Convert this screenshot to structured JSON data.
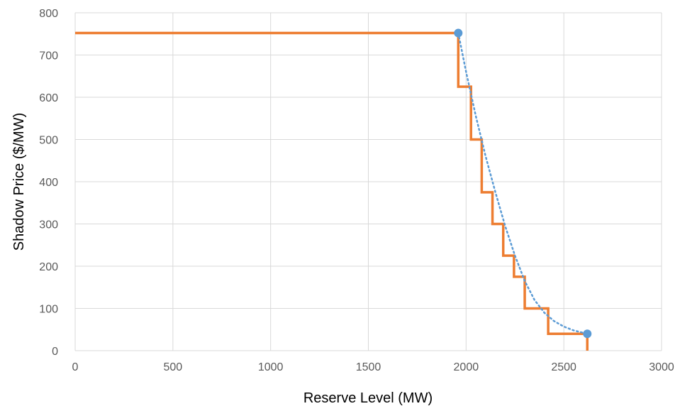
{
  "chart_data": {
    "type": "line",
    "title": "",
    "xlabel": "Reserve Level  (MW)",
    "ylabel": "Shadow Price ($/MW)",
    "xlim": [
      0,
      3000
    ],
    "ylim": [
      0,
      800
    ],
    "xticks": [
      0,
      500,
      1000,
      1500,
      2000,
      2500,
      3000
    ],
    "yticks": [
      0,
      100,
      200,
      300,
      400,
      500,
      600,
      700,
      800
    ],
    "grid": true,
    "legend": "none",
    "series": [
      {
        "kind": "step",
        "color": "#ed7d31",
        "points": [
          [
            0,
            752
          ],
          [
            1960,
            752
          ],
          [
            1960,
            625
          ],
          [
            2025,
            625
          ],
          [
            2025,
            500
          ],
          [
            2080,
            500
          ],
          [
            2080,
            375
          ],
          [
            2135,
            375
          ],
          [
            2135,
            300
          ],
          [
            2190,
            300
          ],
          [
            2190,
            225
          ],
          [
            2245,
            225
          ],
          [
            2245,
            175
          ],
          [
            2300,
            175
          ],
          [
            2300,
            100
          ],
          [
            2420,
            100
          ],
          [
            2420,
            40
          ],
          [
            2620,
            40
          ],
          [
            2620,
            0
          ]
        ]
      },
      {
        "kind": "dotted-curve",
        "color": "#5b9bd5",
        "points": [
          [
            1960,
            752
          ],
          [
            2000,
            660
          ],
          [
            2050,
            555
          ],
          [
            2100,
            460
          ],
          [
            2150,
            375
          ],
          [
            2200,
            295
          ],
          [
            2250,
            225
          ],
          [
            2300,
            165
          ],
          [
            2350,
            120
          ],
          [
            2400,
            90
          ],
          [
            2450,
            70
          ],
          [
            2500,
            57
          ],
          [
            2550,
            48
          ],
          [
            2620,
            40
          ]
        ],
        "markers": [
          [
            1960,
            752
          ],
          [
            2620,
            40
          ]
        ]
      }
    ]
  }
}
